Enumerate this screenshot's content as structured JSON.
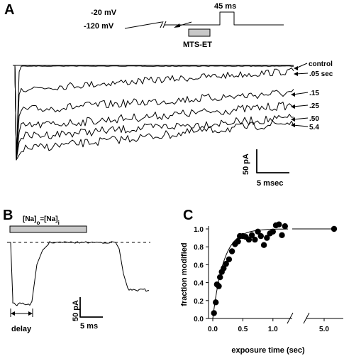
{
  "panels": {
    "a": {
      "letter": "A",
      "protocol": {
        "v_step": "-20 mV",
        "v_hold": "-120 mV",
        "duration": "45 ms",
        "drug": "MTS-ET"
      },
      "trace_labels": [
        "control",
        ".05 sec",
        ".15",
        ".25",
        ".50",
        "5.4"
      ],
      "scalebar": {
        "current": "50 pA",
        "time": "5 msec"
      }
    },
    "b": {
      "letter": "B",
      "condition": "[Na]o=[Na]i",
      "condition_parts": {
        "na": "[Na]",
        "o": "o",
        "eq": "=[Na]",
        "i": "i"
      },
      "delay_label": "delay",
      "scalebar": {
        "current": "50 pA",
        "time": "5 ms"
      }
    },
    "c": {
      "letter": "C"
    }
  },
  "chart_data": {
    "type": "scatter",
    "xlabel": "exposure time (sec)",
    "ylabel": "fraction modified",
    "x_ticks": [
      "0.0",
      "0.5",
      "1.0",
      "5.0"
    ],
    "y_ticks": [
      "0.0",
      "0.2",
      "0.4",
      "0.6",
      "0.8",
      "1.0"
    ],
    "xlim": [
      0,
      1.25
    ],
    "ylim": [
      0,
      1.1
    ],
    "axis_break": true,
    "fit_tau_sec": 0.18,
    "points": [
      {
        "x": 0.02,
        "y": 0.06
      },
      {
        "x": 0.05,
        "y": 0.18
      },
      {
        "x": 0.07,
        "y": 0.38
      },
      {
        "x": 0.1,
        "y": 0.36
      },
      {
        "x": 0.12,
        "y": 0.46
      },
      {
        "x": 0.15,
        "y": 0.52
      },
      {
        "x": 0.18,
        "y": 0.56
      },
      {
        "x": 0.22,
        "y": 0.61
      },
      {
        "x": 0.27,
        "y": 0.66
      },
      {
        "x": 0.32,
        "y": 0.75
      },
      {
        "x": 0.37,
        "y": 0.83
      },
      {
        "x": 0.42,
        "y": 0.86
      },
      {
        "x": 0.45,
        "y": 0.92
      },
      {
        "x": 0.5,
        "y": 0.92
      },
      {
        "x": 0.55,
        "y": 0.91
      },
      {
        "x": 0.6,
        "y": 0.88
      },
      {
        "x": 0.65,
        "y": 0.93
      },
      {
        "x": 0.7,
        "y": 0.88
      },
      {
        "x": 0.75,
        "y": 0.97
      },
      {
        "x": 0.8,
        "y": 0.92
      },
      {
        "x": 0.85,
        "y": 0.82
      },
      {
        "x": 0.9,
        "y": 0.9
      },
      {
        "x": 0.95,
        "y": 0.95
      },
      {
        "x": 1.0,
        "y": 0.97
      },
      {
        "x": 1.05,
        "y": 1.04
      },
      {
        "x": 1.1,
        "y": 1.05
      },
      {
        "x": 1.15,
        "y": 0.93
      },
      {
        "x": 1.2,
        "y": 1.03
      },
      {
        "x": 5.4,
        "y": 1.0
      }
    ]
  }
}
